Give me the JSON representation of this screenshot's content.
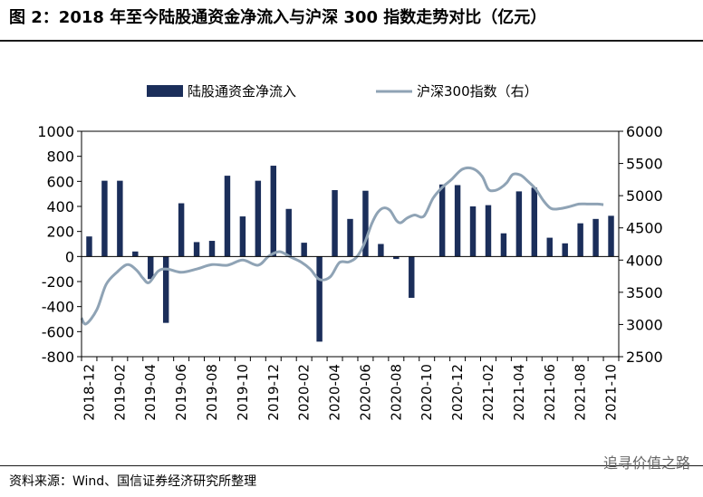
{
  "header": {
    "title": "图 2：2018 年至今陆股通资金净流入与沪深 300 指数走势对比（亿元）"
  },
  "footer": {
    "source": "资料来源：Wind、国信证券经济研究所整理",
    "watermark": "追寻价值之路"
  },
  "colors": {
    "bar": "#1b2e5a",
    "line": "#8fa3b5"
  },
  "chart_data": {
    "type": "bar+line",
    "legend_position": "top",
    "x": [
      "2018-12",
      "2019-01",
      "2019-02",
      "2019-03",
      "2019-04",
      "2019-05",
      "2019-06",
      "2019-07",
      "2019-08",
      "2019-09",
      "2019-10",
      "2019-11",
      "2019-12",
      "2020-01",
      "2020-02",
      "2020-03",
      "2020-04",
      "2020-05",
      "2020-06",
      "2020-07",
      "2020-08",
      "2020-09",
      "2020-10",
      "2020-11",
      "2020-12",
      "2021-01",
      "2021-02",
      "2021-03",
      "2021-04",
      "2021-05",
      "2021-06",
      "2021-07",
      "2021-08",
      "2021-09",
      "2021-10"
    ],
    "x_tick_labels": [
      "2018-12",
      "2019-02",
      "2019-04",
      "2019-06",
      "2019-08",
      "2019-10",
      "2019-12",
      "2020-02",
      "2020-04",
      "2020-06",
      "2020-08",
      "2020-10",
      "2020-12",
      "2021-02",
      "2021-04",
      "2021-06",
      "2021-08",
      "2021-10"
    ],
    "series": [
      {
        "name": "陆股通资金净流入",
        "type": "bar",
        "axis": "left",
        "values": [
          160,
          605,
          605,
          40,
          -180,
          -530,
          425,
          115,
          125,
          645,
          320,
          605,
          725,
          380,
          110,
          -680,
          530,
          300,
          525,
          100,
          -20,
          -330,
          0,
          575,
          570,
          400,
          410,
          185,
          520,
          550,
          150,
          105,
          265,
          300,
          325
        ]
      },
      {
        "name": "沪深300指数（右）",
        "type": "line",
        "axis": "right",
        "x": [
          0,
          0.3,
          1,
          1.6,
          2.3,
          3,
          3.6,
          4,
          4.4,
          5,
          5.6,
          6.5,
          7.5,
          8.5,
          9.5,
          10.5,
          11.5,
          12.2,
          12.9,
          13.6,
          14.3,
          14.9,
          15.5,
          16.2,
          16.8,
          17.4,
          17.9,
          18.4,
          18.9,
          19.3,
          19.7,
          20.1,
          20.5,
          20.8,
          21.2,
          21.7,
          22.3,
          22.9,
          23.5,
          24.1,
          24.8,
          25.5,
          26.1,
          26.5,
          26.9,
          27.3,
          27.7,
          28.1,
          28.6,
          29.1,
          29.6,
          30.1,
          30.6,
          31.2,
          31.8,
          32.4,
          33,
          33.6,
          34
        ],
        "values": [
          3100,
          3010,
          3230,
          3620,
          3810,
          3930,
          3840,
          3720,
          3650,
          3830,
          3860,
          3810,
          3860,
          3930,
          3920,
          4000,
          3920,
          4060,
          4130,
          4050,
          3970,
          3860,
          3700,
          3740,
          3960,
          3970,
          4040,
          4240,
          4560,
          4740,
          4810,
          4770,
          4620,
          4580,
          4650,
          4700,
          4680,
          4960,
          5130,
          5250,
          5410,
          5420,
          5300,
          5100,
          5080,
          5120,
          5200,
          5330,
          5320,
          5220,
          5100,
          4920,
          4800,
          4800,
          4830,
          4870,
          4870,
          4870,
          4860
        ]
      }
    ],
    "y_left": {
      "min": -800,
      "max": 1000,
      "ticks": [
        -800,
        -600,
        -400,
        -200,
        0,
        200,
        400,
        600,
        800,
        1000
      ]
    },
    "y_right": {
      "min": 2500,
      "max": 6000,
      "ticks": [
        2500,
        3000,
        3500,
        4000,
        4500,
        5000,
        5500,
        6000
      ]
    }
  }
}
